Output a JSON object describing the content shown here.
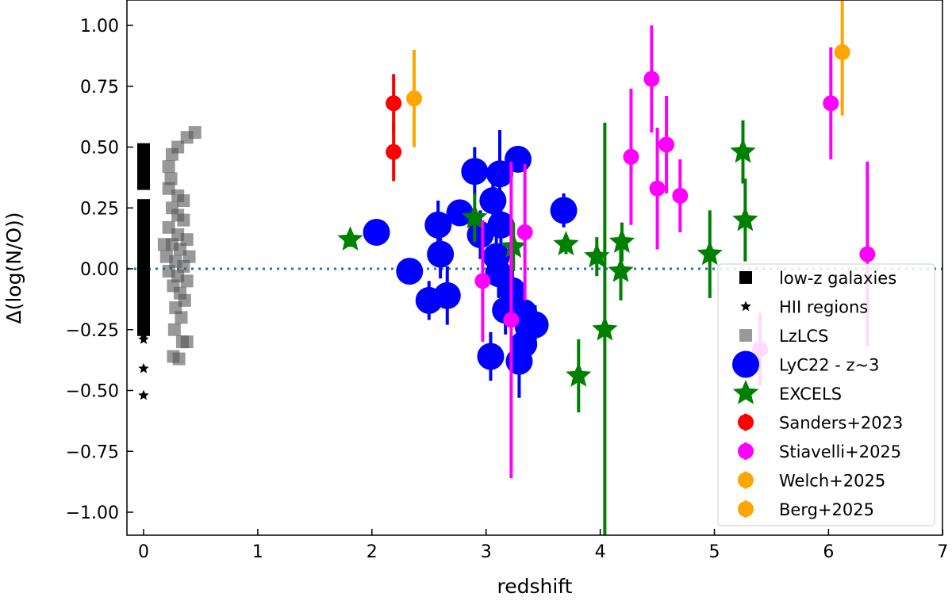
{
  "chart_data": {
    "type": "scatter",
    "xlabel": "redshift",
    "ylabel": "Δ(log(N/O))",
    "xlim": [
      -0.18,
      7
    ],
    "ylim": [
      -1.1,
      1.1
    ],
    "xticks": [
      "0",
      "1",
      "2",
      "3",
      "4",
      "5",
      "6",
      "7"
    ],
    "yticks": [
      "−1.00",
      "−0.75",
      "−0.50",
      "−0.25",
      "0.00",
      "0.25",
      "0.50",
      "0.75",
      "1.00"
    ],
    "reference_line": {
      "y": 0,
      "style": "dotted",
      "color": "#1f77b4"
    },
    "legend_placement": "lower-right",
    "series": [
      {
        "name": "low-z galaxies",
        "marker": "square",
        "color": "#000000",
        "points": [
          [
            0,
            0.49
          ],
          [
            0,
            0.46
          ],
          [
            0,
            0.43
          ],
          [
            0,
            0.4
          ],
          [
            0,
            0.37
          ],
          [
            0,
            0.35
          ],
          [
            0,
            0.26
          ],
          [
            0,
            0.23
          ],
          [
            0,
            0.2
          ],
          [
            0,
            0.17
          ],
          [
            0,
            0.14
          ],
          [
            0,
            0.11
          ],
          [
            0,
            0.08
          ],
          [
            0,
            0.05
          ],
          [
            0,
            0.02
          ],
          [
            0,
            -0.01
          ],
          [
            0,
            -0.04
          ],
          [
            0,
            -0.07
          ],
          [
            0,
            -0.1
          ],
          [
            0,
            -0.13
          ],
          [
            0,
            -0.16
          ],
          [
            0,
            -0.19
          ],
          [
            0,
            -0.22
          ],
          [
            0,
            -0.25
          ]
        ]
      },
      {
        "name": "HII regions",
        "marker": "star-small",
        "color": "#000000",
        "points": [
          [
            0,
            -0.27
          ],
          [
            0,
            -0.29
          ],
          [
            0,
            -0.41
          ],
          [
            0,
            -0.52
          ]
        ]
      },
      {
        "name": "LzLCS",
        "marker": "square",
        "color": "#555555",
        "points": [
          [
            0.45,
            0.56
          ],
          [
            0.38,
            0.54
          ],
          [
            0.3,
            0.5
          ],
          [
            0.25,
            0.47
          ],
          [
            0.22,
            0.42
          ],
          [
            0.24,
            0.37
          ],
          [
            0.22,
            0.33
          ],
          [
            0.3,
            0.3
          ],
          [
            0.25,
            0.25
          ],
          [
            0.3,
            0.22
          ],
          [
            0.35,
            0.2
          ],
          [
            0.22,
            0.17
          ],
          [
            0.3,
            0.14
          ],
          [
            0.38,
            0.12
          ],
          [
            0.25,
            0.1
          ],
          [
            0.32,
            0.08
          ],
          [
            0.2,
            0.05
          ],
          [
            0.28,
            0.03
          ],
          [
            0.35,
            0.01
          ],
          [
            0.22,
            -0.01
          ],
          [
            0.3,
            -0.03
          ],
          [
            0.38,
            -0.05
          ],
          [
            0.26,
            -0.07
          ],
          [
            0.32,
            -0.1
          ],
          [
            0.36,
            -0.13
          ],
          [
            0.28,
            -0.16
          ],
          [
            0.33,
            -0.2
          ],
          [
            0.27,
            -0.25
          ],
          [
            0.34,
            -0.3
          ],
          [
            0.26,
            -0.36
          ],
          [
            0.31,
            -0.37
          ],
          [
            0.38,
            -0.3
          ],
          [
            0.4,
            0.05
          ],
          [
            0.18,
            0.1
          ],
          [
            0.35,
            0.28
          ]
        ]
      },
      {
        "name": "LyC22 - z~3",
        "marker": "circle-large",
        "color": "#0000ff",
        "points": [
          [
            2.04,
            0.15,
            0.05
          ],
          [
            2.33,
            -0.01,
            0.03
          ],
          [
            2.5,
            -0.13,
            0.08
          ],
          [
            2.58,
            0.18,
            0.1
          ],
          [
            2.6,
            0.06,
            0.1
          ],
          [
            2.66,
            -0.11,
            0.12
          ],
          [
            2.77,
            0.23,
            0.03
          ],
          [
            2.9,
            0.4,
            0.1
          ],
          [
            2.95,
            0.14,
            0.1
          ],
          [
            3.12,
            0.39,
            0.18
          ],
          [
            3.06,
            0.28,
            0.1
          ],
          [
            3.13,
            0.18,
            0.1
          ],
          [
            3.09,
            0.05,
            0.1
          ],
          [
            3.11,
            -0.02,
            0.1
          ],
          [
            3.23,
            -0.09,
            0.1
          ],
          [
            3.17,
            -0.17,
            0.1
          ],
          [
            3.28,
            0.45,
            0.05
          ],
          [
            3.04,
            -0.36,
            0.1
          ],
          [
            3.33,
            -0.18,
            0.12
          ],
          [
            3.37,
            -0.24,
            0.1
          ],
          [
            3.43,
            -0.23,
            0.08
          ],
          [
            3.33,
            -0.31,
            0.12
          ],
          [
            3.29,
            -0.38,
            0.15
          ],
          [
            3.68,
            0.24,
            0.07
          ]
        ]
      },
      {
        "name": "EXCELS",
        "marker": "star",
        "color": "#008000",
        "points": [
          [
            1.81,
            0.12,
            0.03
          ],
          [
            2.9,
            0.21,
            0.1
          ],
          [
            3.24,
            0.09,
            0.1
          ],
          [
            3.7,
            0.1,
            0.04
          ],
          [
            3.81,
            -0.44,
            0.15
          ],
          [
            3.97,
            0.05,
            0.08
          ],
          [
            4.04,
            -0.25,
            0.85
          ],
          [
            4.19,
            0.11,
            0.08
          ],
          [
            4.18,
            -0.01,
            0.12
          ],
          [
            4.96,
            0.06,
            0.18
          ],
          [
            5.25,
            0.48,
            0.13
          ],
          [
            5.27,
            0.2,
            0.17
          ]
        ]
      },
      {
        "name": "Sanders+2023",
        "marker": "circle",
        "color": "#ff0000",
        "points": [
          [
            2.19,
            0.48,
            0.12
          ],
          [
            2.19,
            0.68,
            0.12
          ]
        ]
      },
      {
        "name": "Stiavelli+2025",
        "marker": "circle",
        "color": "#ff00ff",
        "points": [
          [
            2.97,
            -0.05,
            0.25
          ],
          [
            3.22,
            -0.21,
            0.65
          ],
          [
            3.34,
            0.15,
            0.28
          ],
          [
            4.27,
            0.46,
            0.28
          ],
          [
            4.5,
            0.33,
            0.25
          ],
          [
            4.58,
            0.51,
            0.2
          ],
          [
            4.45,
            0.78,
            0.22
          ],
          [
            4.7,
            0.3,
            0.15
          ],
          [
            6.02,
            0.68,
            0.23
          ],
          [
            6.34,
            0.06,
            0.38
          ],
          [
            5.4,
            -0.33,
            0.15
          ]
        ]
      },
      {
        "name": "Welch+2025",
        "marker": "circle",
        "color": "#ffa500",
        "points": [
          [
            2.37,
            0.7,
            0.2
          ]
        ]
      },
      {
        "name": "Berg+2025",
        "marker": "circle",
        "color": "#ffa500",
        "points": [
          [
            6.12,
            0.89,
            0.26
          ]
        ]
      }
    ]
  }
}
